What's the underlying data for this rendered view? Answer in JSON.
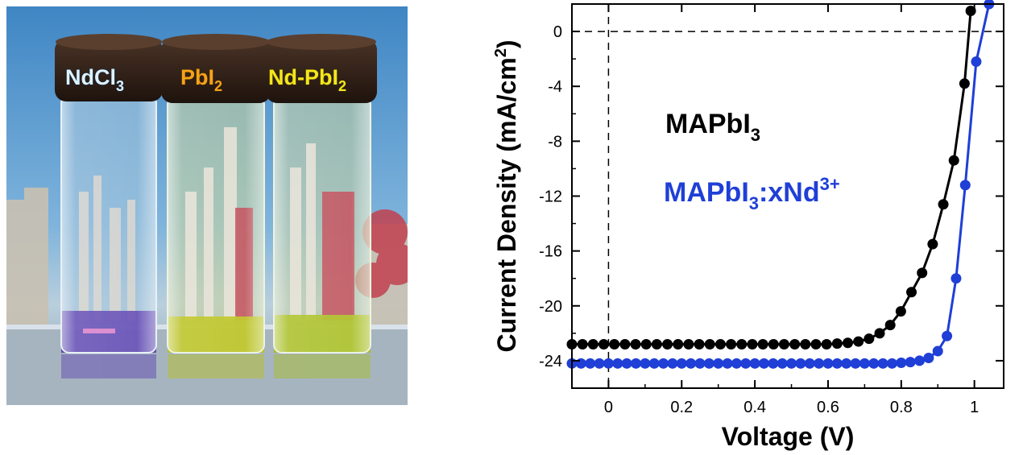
{
  "photo": {
    "labels": [
      {
        "name": "NdCl",
        "sub": "3",
        "tail": "",
        "color": "#dff2ff"
      },
      {
        "name": "PbI",
        "sub": "2",
        "tail": "",
        "color": "#f6a21a"
      },
      {
        "name": "Nd-PbI",
        "sub": "2",
        "tail": "",
        "color": "#f5e51c"
      }
    ],
    "liquid_colors": [
      "#5a3fb0",
      "#b9c21a",
      "#a9bf1f"
    ]
  },
  "chart_data": {
    "type": "scatter",
    "xlabel": "Voltage (V)",
    "ylabel": "Current Density (mA/cm2)",
    "xlim": [
      -0.1,
      1.08
    ],
    "ylim": [
      -26,
      2
    ],
    "x_ticks": [
      0,
      0.2,
      0.4,
      0.6,
      0.8,
      1
    ],
    "x_tick_labels": [
      "0",
      "0.2",
      "0.4",
      "0.6",
      "0.8",
      "1"
    ],
    "y_ticks": [
      0,
      -4,
      -8,
      -12,
      -16,
      -20,
      -24
    ],
    "y_tick_labels": [
      "0",
      "-4",
      "-8",
      "-12",
      "-16",
      "-20",
      "-24"
    ],
    "reference_lines": {
      "x": 0,
      "y": 0,
      "style": "dashed"
    },
    "grid": false,
    "legend_position": "center-left",
    "series": [
      {
        "name": "MAPbI3",
        "name_parts": {
          "base": "MAPbI",
          "sub": "3",
          "tail": "",
          "sup": ""
        },
        "color": "#000000",
        "x": [
          -0.1,
          -0.071,
          -0.042,
          -0.013,
          0.016,
          0.045,
          0.074,
          0.103,
          0.132,
          0.161,
          0.19,
          0.219,
          0.248,
          0.277,
          0.306,
          0.335,
          0.364,
          0.393,
          0.422,
          0.451,
          0.48,
          0.509,
          0.538,
          0.567,
          0.596,
          0.625,
          0.654,
          0.683,
          0.712,
          0.741,
          0.77,
          0.799,
          0.828,
          0.857,
          0.886,
          0.915,
          0.944,
          0.973,
          0.99
        ],
        "y": [
          -22.8,
          -22.8,
          -22.8,
          -22.8,
          -22.8,
          -22.8,
          -22.8,
          -22.8,
          -22.8,
          -22.8,
          -22.8,
          -22.8,
          -22.8,
          -22.8,
          -22.8,
          -22.8,
          -22.8,
          -22.8,
          -22.8,
          -22.8,
          -22.8,
          -22.8,
          -22.8,
          -22.8,
          -22.8,
          -22.75,
          -22.7,
          -22.6,
          -22.4,
          -22.0,
          -21.4,
          -20.4,
          -19.0,
          -17.6,
          -15.5,
          -12.6,
          -9.4,
          -3.8,
          1.5
        ]
      },
      {
        "name": "MAPbI3:xNd3+",
        "name_parts": {
          "base": "MAPbI",
          "sub": "3",
          "tail": ":xNd",
          "sup": "3+"
        },
        "color": "#1f3fd6",
        "x": [
          -0.1,
          -0.075,
          -0.05,
          -0.025,
          0.0,
          0.025,
          0.05,
          0.075,
          0.1,
          0.125,
          0.15,
          0.175,
          0.2,
          0.225,
          0.25,
          0.275,
          0.3,
          0.325,
          0.35,
          0.375,
          0.4,
          0.425,
          0.45,
          0.475,
          0.5,
          0.525,
          0.55,
          0.575,
          0.6,
          0.625,
          0.65,
          0.675,
          0.7,
          0.725,
          0.75,
          0.775,
          0.8,
          0.825,
          0.85,
          0.875,
          0.9,
          0.925,
          0.95,
          0.975,
          1.005,
          1.04
        ],
        "y": [
          -24.2,
          -24.2,
          -24.2,
          -24.2,
          -24.2,
          -24.2,
          -24.2,
          -24.2,
          -24.2,
          -24.2,
          -24.2,
          -24.2,
          -24.2,
          -24.2,
          -24.2,
          -24.2,
          -24.2,
          -24.2,
          -24.2,
          -24.2,
          -24.2,
          -24.2,
          -24.2,
          -24.2,
          -24.2,
          -24.2,
          -24.2,
          -24.2,
          -24.2,
          -24.2,
          -24.2,
          -24.2,
          -24.2,
          -24.2,
          -24.2,
          -24.2,
          -24.15,
          -24.1,
          -24.0,
          -23.8,
          -23.3,
          -22.2,
          -18.0,
          -11.2,
          -2.2,
          2.0
        ]
      }
    ]
  }
}
